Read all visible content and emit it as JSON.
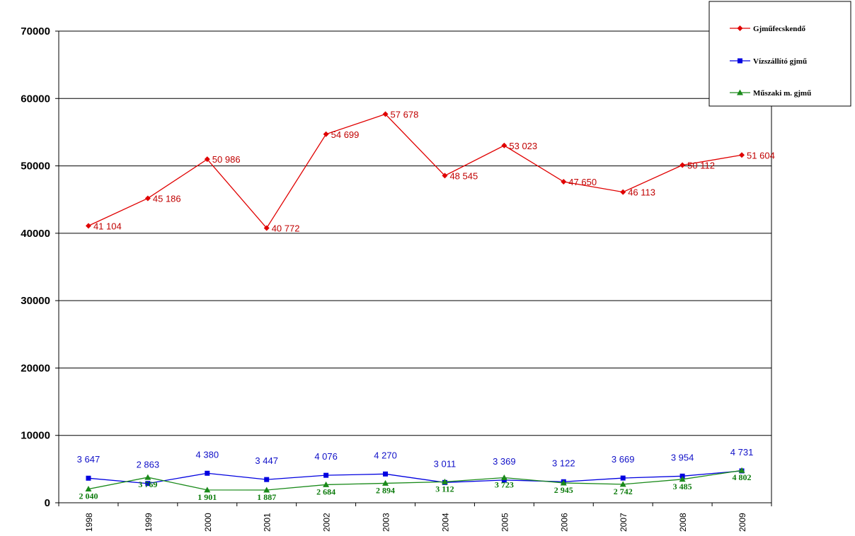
{
  "chart_data": {
    "type": "line",
    "title": "",
    "xlabel": "",
    "ylabel": "",
    "ylim": [
      0,
      70000
    ],
    "yticks": [
      0,
      10000,
      20000,
      30000,
      40000,
      50000,
      60000,
      70000
    ],
    "ytick_labels": [
      "0",
      "10000",
      "20000",
      "30000",
      "40000",
      "50000",
      "60000",
      "70000"
    ],
    "x": [
      "1998",
      "1999",
      "2000",
      "2001",
      "2002",
      "2003",
      "2004",
      "2005",
      "2006",
      "2007",
      "2008",
      "2009"
    ],
    "grid": "horizontal",
    "legend_position": "top-right",
    "series": [
      {
        "name": "Gjműfecskendő",
        "color": "#e00000",
        "marker": "diamond",
        "values": [
          41104,
          45186,
          50986,
          40772,
          54699,
          57678,
          48545,
          53023,
          47650,
          46113,
          50112,
          51604
        ],
        "labels": [
          "41 104",
          "45 186",
          "50 986",
          "40 772",
          "54 699",
          "57 678",
          "48 545",
          "53 023",
          "47 650",
          "46 113",
          "50 112",
          "51 604"
        ]
      },
      {
        "name": "Vízszállító gjmű",
        "color": "#0000e0",
        "marker": "square",
        "values": [
          3647,
          2863,
          4380,
          3447,
          4076,
          4270,
          3011,
          3369,
          3122,
          3669,
          3954,
          4731
        ],
        "labels": [
          "3 647",
          "2 863",
          "4 380",
          "3 447",
          "4 076",
          "4 270",
          "3 011",
          "3 369",
          "3 122",
          "3 669",
          "3 954",
          "4 731"
        ]
      },
      {
        "name": "Műszaki m. gjmű",
        "color": "#1a8a1a",
        "marker": "triangle",
        "values": [
          2040,
          3769,
          1901,
          1887,
          2684,
          2894,
          3112,
          3723,
          2945,
          2742,
          3485,
          4802
        ],
        "labels": [
          "2 040",
          "3 769",
          "1 901",
          "1 887",
          "2 684",
          "2 894",
          "3 112",
          "3 723",
          "2 945",
          "2 742",
          "3 485",
          "4 802"
        ]
      }
    ]
  }
}
